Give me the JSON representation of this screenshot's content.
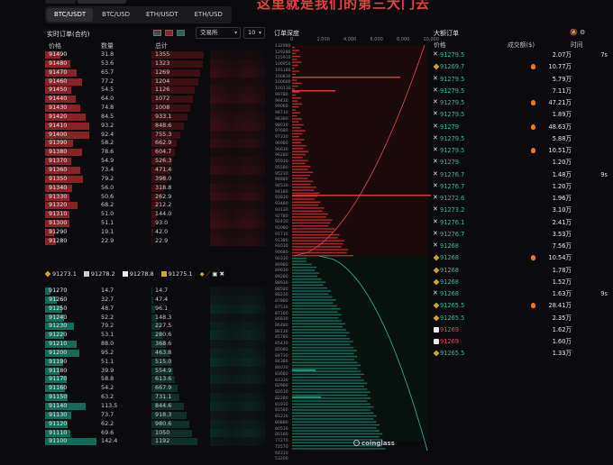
{
  "banner": "这里就是我们的第三大门去",
  "tabs": [
    {
      "label": "BTC/USDT",
      "active": true
    },
    {
      "label": "BTC/USD",
      "active": false
    },
    {
      "label": "ETH/USDT",
      "active": false
    },
    {
      "label": "ETH/USD",
      "active": false
    }
  ],
  "orderbook": {
    "title": "实时订单(合约)",
    "exchange_label": "交易所",
    "depth_value": "10",
    "headers": {
      "price": "价格",
      "qty": "数量",
      "total": "总计"
    },
    "asks": [
      {
        "price": "91490",
        "qty": "31.8",
        "total": "1355"
      },
      {
        "price": "91480",
        "qty": "53.6",
        "total": "1323"
      },
      {
        "price": "91470",
        "qty": "65.7",
        "total": "1269"
      },
      {
        "price": "91460",
        "qty": "77.2",
        "total": "1204"
      },
      {
        "price": "91450",
        "qty": "54.5",
        "total": "1126"
      },
      {
        "price": "91440",
        "qty": "64.0",
        "total": "1072"
      },
      {
        "price": "91430",
        "qty": "74.8",
        "total": "1008"
      },
      {
        "price": "91420",
        "qty": "84.5",
        "total": "933.1"
      },
      {
        "price": "91410",
        "qty": "93.2",
        "total": "848.6"
      },
      {
        "price": "91400",
        "qty": "92.4",
        "total": "755.3"
      },
      {
        "price": "91390",
        "qty": "58.2",
        "total": "662.9"
      },
      {
        "price": "91380",
        "qty": "78.6",
        "total": "604.7"
      },
      {
        "price": "91370",
        "qty": "54.9",
        "total": "526.3"
      },
      {
        "price": "91360",
        "qty": "73.4",
        "total": "471.4"
      },
      {
        "price": "91350",
        "qty": "79.2",
        "total": "398.0"
      },
      {
        "price": "91340",
        "qty": "56.0",
        "total": "318.8"
      },
      {
        "price": "91330",
        "qty": "50.6",
        "total": "262.9"
      },
      {
        "price": "91320",
        "qty": "68.2",
        "total": "212.2"
      },
      {
        "price": "91310",
        "qty": "51.0",
        "total": "144.0"
      },
      {
        "price": "91300",
        "qty": "51.1",
        "total": "93.0"
      },
      {
        "price": "91290",
        "qty": "19.1",
        "total": "42.0"
      },
      {
        "price": "91280",
        "qty": "22.9",
        "total": "22.9"
      }
    ],
    "bids": [
      {
        "price": "91270",
        "qty": "14.7",
        "total": "14.7"
      },
      {
        "price": "91260",
        "qty": "32.7",
        "total": "47.4"
      },
      {
        "price": "91250",
        "qty": "48.7",
        "total": "96.1"
      },
      {
        "price": "91240",
        "qty": "52.2",
        "total": "148.3"
      },
      {
        "price": "91230",
        "qty": "79.2",
        "total": "227.5"
      },
      {
        "price": "91220",
        "qty": "53.1",
        "total": "280.6"
      },
      {
        "price": "91210",
        "qty": "88.0",
        "total": "368.6"
      },
      {
        "price": "91200",
        "qty": "95.2",
        "total": "463.8"
      },
      {
        "price": "91190",
        "qty": "51.1",
        "total": "515.0"
      },
      {
        "price": "91180",
        "qty": "39.9",
        "total": "554.9"
      },
      {
        "price": "91170",
        "qty": "58.8",
        "total": "613.6"
      },
      {
        "price": "91160",
        "qty": "54.2",
        "total": "667.9"
      },
      {
        "price": "91150",
        "qty": "63.2",
        "total": "731.1"
      },
      {
        "price": "91140",
        "qty": "113.5",
        "total": "844.6"
      },
      {
        "price": "91130",
        "qty": "73.7",
        "total": "918.3"
      },
      {
        "price": "91120",
        "qty": "62.2",
        "total": "980.6"
      },
      {
        "price": "91110",
        "qty": "69.6",
        "total": "1050"
      },
      {
        "price": "91100",
        "qty": "142.4",
        "total": "1192"
      }
    ],
    "ticker": [
      {
        "exchange": "binance",
        "value": "91273.1"
      },
      {
        "exchange": "okx",
        "value": "91278.2"
      },
      {
        "exchange": "coinbase",
        "value": "91278.8"
      },
      {
        "exchange": "bybit",
        "value": "91275.1"
      }
    ]
  },
  "depth": {
    "title": "订单深度",
    "x_ticks": [
      "0",
      "2,000",
      "4,000",
      "6,000",
      "8,000",
      "10,000"
    ],
    "y_labels": [
      "132980",
      "129280",
      "115910",
      "106950",
      "101180",
      "100830",
      "100680",
      "100130",
      "99780",
      "99430",
      "99060",
      "98730",
      "98380",
      "98030",
      "97680",
      "97330",
      "96980",
      "96630",
      "96280",
      "95930",
      "95580",
      "95230",
      "94880",
      "94530",
      "94180",
      "93830",
      "93480",
      "93130",
      "92780",
      "92430",
      "92080",
      "91730",
      "91380",
      "91030",
      "90680",
      "90330",
      "89980",
      "89630",
      "89280",
      "88930",
      "88580",
      "88230",
      "87880",
      "87530",
      "87180",
      "86830",
      "86480",
      "86130",
      "85780",
      "85430",
      "85080",
      "84730",
      "84380",
      "84030",
      "83680",
      "83330",
      "82980",
      "82630",
      "82280",
      "81930",
      "81580",
      "81230",
      "80880",
      "80530",
      "80180",
      "77270",
      "72570",
      "64310",
      "53200"
    ],
    "watermark": "coinglass"
  },
  "large_orders": {
    "title": "大额订单",
    "headers": {
      "price": "价格",
      "amount": "成交额($)",
      "time": "时间"
    },
    "rows": [
      {
        "ex": "okx",
        "side": "buy",
        "price": "91279.5",
        "amount": "2.07万",
        "fire": false,
        "time": "7s"
      },
      {
        "ex": "binance",
        "side": "buy",
        "price": "91269.7",
        "amount": "10.77万",
        "fire": true,
        "time": ""
      },
      {
        "ex": "okx",
        "side": "buy",
        "price": "91279.5",
        "amount": "5.79万",
        "fire": false,
        "time": ""
      },
      {
        "ex": "okx",
        "side": "buy",
        "price": "91279.5",
        "amount": "7.11万",
        "fire": false,
        "time": ""
      },
      {
        "ex": "okx",
        "side": "buy",
        "price": "91279.5",
        "amount": "47.21万",
        "fire": true,
        "time": ""
      },
      {
        "ex": "okx",
        "side": "buy",
        "price": "91279.5",
        "amount": "1.89万",
        "fire": false,
        "time": ""
      },
      {
        "ex": "okx",
        "side": "buy",
        "price": "91279",
        "amount": "48.63万",
        "fire": true,
        "time": ""
      },
      {
        "ex": "okx",
        "side": "buy",
        "price": "91279.5",
        "amount": "5.88万",
        "fire": false,
        "time": ""
      },
      {
        "ex": "okx",
        "side": "buy",
        "price": "91279.5",
        "amount": "10.51万",
        "fire": true,
        "time": ""
      },
      {
        "ex": "okx",
        "side": "buy",
        "price": "91279",
        "amount": "1.20万",
        "fire": false,
        "time": ""
      },
      {
        "ex": "okx",
        "side": "buy",
        "price": "91276.7",
        "amount": "1.48万",
        "fire": false,
        "time": "9s"
      },
      {
        "ex": "okx",
        "side": "buy",
        "price": "91276.7",
        "amount": "1.20万",
        "fire": false,
        "time": ""
      },
      {
        "ex": "okx",
        "side": "buy",
        "price": "91272.6",
        "amount": "1.96万",
        "fire": false,
        "time": ""
      },
      {
        "ex": "okx",
        "side": "buy",
        "price": "91273.2",
        "amount": "3.10万",
        "fire": false,
        "time": ""
      },
      {
        "ex": "okx",
        "side": "buy",
        "price": "91276.1",
        "amount": "2.41万",
        "fire": false,
        "time": ""
      },
      {
        "ex": "okx",
        "side": "buy",
        "price": "91276.7",
        "amount": "3.53万",
        "fire": false,
        "time": ""
      },
      {
        "ex": "okx",
        "side": "buy",
        "price": "91268",
        "amount": "7.56万",
        "fire": false,
        "time": ""
      },
      {
        "ex": "binance",
        "side": "buy",
        "price": "91268",
        "amount": "10.54万",
        "fire": true,
        "time": ""
      },
      {
        "ex": "binance",
        "side": "buy",
        "price": "91268",
        "amount": "1.78万",
        "fire": false,
        "time": ""
      },
      {
        "ex": "binance",
        "side": "buy",
        "price": "91268",
        "amount": "1.52万",
        "fire": false,
        "time": ""
      },
      {
        "ex": "okx",
        "side": "buy",
        "price": "91268",
        "amount": "1.63万",
        "fire": false,
        "time": "9s"
      },
      {
        "ex": "binance",
        "side": "buy",
        "price": "91265.5",
        "amount": "28.41万",
        "fire": true,
        "time": ""
      },
      {
        "ex": "binance",
        "side": "buy",
        "price": "91265.5",
        "amount": "2.35万",
        "fire": false,
        "time": ""
      },
      {
        "ex": "coinbase",
        "side": "sell",
        "price": "91269",
        "amount": "1.62万",
        "fire": false,
        "time": ""
      },
      {
        "ex": "coinbase",
        "side": "sell",
        "price": "91269",
        "amount": "1.60万",
        "fire": false,
        "time": ""
      },
      {
        "ex": "binance",
        "side": "buy",
        "price": "91265.5",
        "amount": "1.33万",
        "fire": false,
        "time": ""
      }
    ]
  }
}
